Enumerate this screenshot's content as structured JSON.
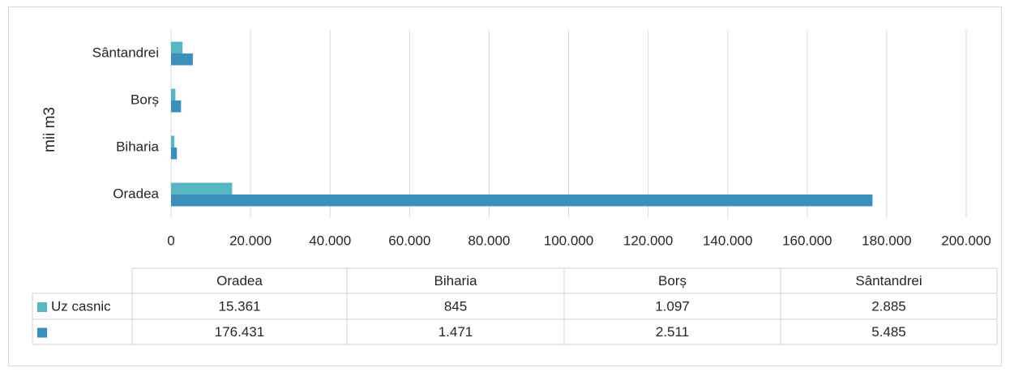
{
  "chart_data": {
    "type": "bar",
    "orientation": "horizontal",
    "y_label": "mii m3",
    "categories": [
      "Oradea",
      "Biharia",
      "Borș",
      "Sântandrei"
    ],
    "series": [
      {
        "name": "Uz casnic",
        "color": "#56b6c2",
        "values": [
          15361,
          845,
          1097,
          2885
        ],
        "value_labels": [
          "15.361",
          "845",
          "1.097",
          "2.885"
        ]
      },
      {
        "color": "#3a8fbd",
        "values": [
          176431,
          1471,
          2511,
          5485
        ],
        "value_labels": [
          "176.431",
          "1.471",
          "2.511",
          "5.485"
        ]
      }
    ],
    "xlim": [
      0,
      200000
    ],
    "xticks": [
      0,
      {
        "value": 20000,
        "label": "20.000"
      },
      {
        "value": 40000,
        "label": "40.000"
      },
      {
        "value": 60000,
        "label": "60.000"
      },
      {
        "value": 80000,
        "label": "80.000"
      },
      {
        "value": 100000,
        "label": "100.000"
      },
      {
        "value": 120000,
        "label": "120.000"
      },
      {
        "value": 140000,
        "label": "140.000"
      },
      {
        "value": 160000,
        "label": "160.000"
      },
      {
        "value": 180000,
        "label": "180.000"
      },
      {
        "value": 200000,
        "label": "200.000"
      }
    ],
    "grid": true
  }
}
